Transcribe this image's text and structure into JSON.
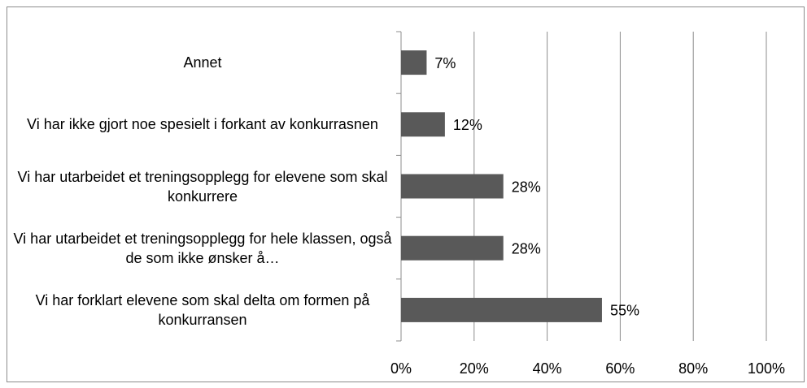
{
  "chart_data": {
    "type": "bar",
    "orientation": "horizontal",
    "categories": [
      "Annet",
      "Vi har ikke gjort noe spesielt i forkant av konkurrasnen",
      "Vi har utarbeidet et treningsopplegg for elevene som skal konkurrere",
      "Vi har utarbeidet et treningsopplegg for hele klassen, også de som ikke ønsker å…",
      "Vi har forklart elevene som skal delta om formen på konkurransen"
    ],
    "values": [
      7,
      12,
      28,
      28,
      55
    ],
    "value_labels": [
      "7%",
      "12%",
      "28%",
      "28%",
      "55%"
    ],
    "color": "#595959",
    "xlim": [
      0,
      100
    ],
    "xticks": [
      {
        "value": 0,
        "label": "0%"
      },
      {
        "value": 20,
        "label": "20%"
      },
      {
        "value": 40,
        "label": "40%"
      },
      {
        "value": 60,
        "label": "60%"
      },
      {
        "value": 80,
        "label": "80%"
      },
      {
        "value": 100,
        "label": "100%"
      }
    ],
    "grid": true
  }
}
